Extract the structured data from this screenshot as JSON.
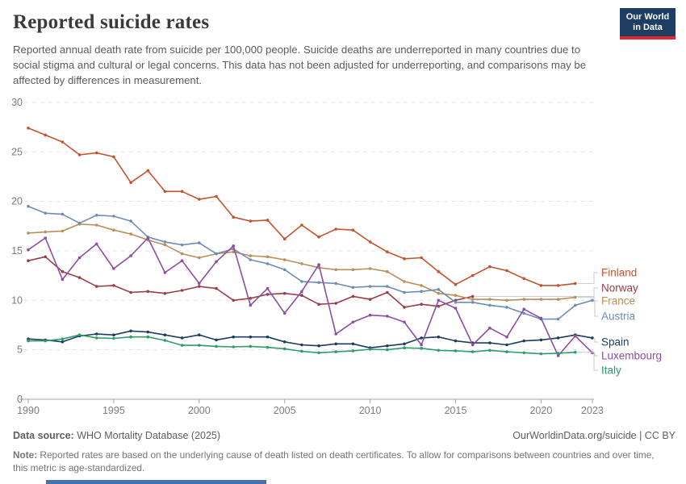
{
  "header": {
    "title": "Reported suicide rates",
    "subtitle": "Reported annual death rate from suicide per 100,000 people. Suicide deaths are underreported in many countries due to social stigma and cultural or legal concerns. This data has not been adjusted for underreporting, and comparisons may be affected by differences in measurement."
  },
  "logo": {
    "line1": "Our World",
    "line2": "in Data",
    "bg": "#1d3d63",
    "bar": "#e0282e"
  },
  "chart_data": {
    "type": "line",
    "xlabel": "",
    "ylabel": "",
    "xlim": [
      1990,
      2023
    ],
    "ylim": [
      0,
      30
    ],
    "x_ticks": [
      1990,
      1995,
      2000,
      2005,
      2010,
      2015,
      2020,
      2023
    ],
    "y_ticks": [
      0,
      5,
      10,
      15,
      20,
      25,
      30
    ],
    "grid": "horizontal-dashed",
    "legend_position": "right",
    "series": [
      {
        "name": "Finland",
        "color": "#C4532D",
        "start_year": 1990,
        "values": [
          27.4,
          26.7,
          26.0,
          24.7,
          24.9,
          24.5,
          21.9,
          23.1,
          21.0,
          21.0,
          20.2,
          20.5,
          18.4,
          18.0,
          18.1,
          16.2,
          17.6,
          16.4,
          17.2,
          17.1,
          15.9,
          14.9,
          14.2,
          14.3,
          12.9,
          11.6,
          12.5,
          13.4,
          13.0,
          12.2,
          11.5,
          11.5,
          11.7
        ]
      },
      {
        "name": "Norway",
        "color": "#9A3E47",
        "start_year": 1990,
        "values": [
          14.0,
          14.4,
          12.9,
          12.3,
          11.4,
          11.5,
          10.8,
          10.9,
          10.7,
          11.0,
          11.4,
          11.2,
          10.0,
          10.2,
          10.6,
          10.7,
          10.5,
          9.6,
          9.7,
          10.4,
          10.1,
          10.8,
          9.3,
          9.6,
          9.4,
          10.0,
          10.4
        ]
      },
      {
        "name": "France",
        "color": "#BC8E5A",
        "start_year": 1990,
        "values": [
          16.8,
          16.9,
          17.0,
          17.7,
          17.6,
          17.1,
          16.7,
          16.1,
          15.6,
          14.7,
          14.3,
          14.7,
          14.9,
          14.5,
          14.4,
          14.1,
          13.7,
          13.3,
          13.1,
          13.1,
          13.2,
          12.9,
          11.9,
          11.5,
          10.7,
          10.5,
          10.1,
          10.1,
          10.0,
          10.1,
          10.1,
          10.1,
          10.3
        ]
      },
      {
        "name": "Austria",
        "color": "#6C8EB5",
        "start_year": 1990,
        "values": [
          19.5,
          18.8,
          18.7,
          17.8,
          18.6,
          18.5,
          18.0,
          16.4,
          15.9,
          15.6,
          15.8,
          14.7,
          15.2,
          14.1,
          13.7,
          13.1,
          11.9,
          11.8,
          11.7,
          11.3,
          11.4,
          11.4,
          10.8,
          10.9,
          11.1,
          9.8,
          9.8,
          9.5,
          9.3,
          8.7,
          8.1,
          8.1,
          9.5,
          10.0
        ]
      },
      {
        "name": "Spain",
        "color": "#1D3D63",
        "start_year": 1990,
        "values": [
          6.1,
          6.0,
          5.8,
          6.4,
          6.6,
          6.5,
          6.9,
          6.8,
          6.5,
          6.2,
          6.5,
          6.0,
          6.3,
          6.3,
          6.3,
          5.8,
          5.5,
          5.4,
          5.6,
          5.6,
          5.2,
          5.4,
          5.6,
          6.2,
          6.3,
          5.9,
          5.7,
          5.7,
          5.5,
          5.9,
          6.0,
          6.2,
          6.5,
          6.2
        ]
      },
      {
        "name": "Luxembourg",
        "color": "#8C4EA3",
        "start_year": 1990,
        "values": [
          15.1,
          16.3,
          12.1,
          14.3,
          15.7,
          13.2,
          14.5,
          16.3,
          12.8,
          14.0,
          11.7,
          13.9,
          15.5,
          9.5,
          11.2,
          8.7,
          10.9,
          13.6,
          6.6,
          7.8,
          8.5,
          8.4,
          7.8,
          5.5,
          10.0,
          9.2,
          5.5,
          7.2,
          6.3,
          9.1,
          8.2,
          4.4,
          6.4,
          4.7
        ]
      },
      {
        "name": "Italy",
        "color": "#2F9C69",
        "start_year": 1990,
        "values": [
          5.9,
          5.9,
          6.1,
          6.5,
          6.2,
          6.15,
          6.3,
          6.3,
          5.95,
          5.45,
          5.45,
          5.35,
          5.3,
          5.35,
          5.25,
          5.1,
          4.85,
          4.7,
          4.8,
          4.9,
          5.05,
          5.0,
          5.2,
          5.15,
          4.95,
          4.9,
          4.8,
          4.95,
          4.8,
          4.7,
          4.6,
          4.65,
          4.75
        ]
      }
    ]
  },
  "footer": {
    "source_label": "Data source:",
    "source_text": " WHO Mortality Database (2025)",
    "link_text": "OurWorldinData.org/suicide | CC BY",
    "note_label": "Note:",
    "note_text": " Reported rates are based on the underlying cause of death listed on death certificates. To allow for comparisons between countries and over time, this metric is age-standardized."
  },
  "misc": {
    "bottom_bar_color": "#4173B3",
    "grid_color": "#E2E2E2",
    "axis_color": "#A6A6A6",
    "tick_text_color": "#7d7d7d",
    "leader_color": "#c9c9c9"
  }
}
